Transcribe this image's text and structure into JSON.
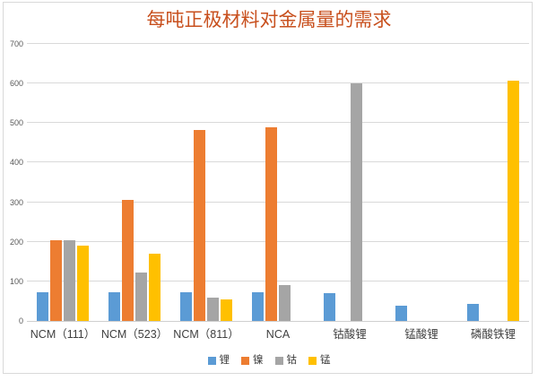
{
  "title": "每吨正极材料对金属量的需求",
  "chart_data": {
    "type": "bar",
    "title": "每吨正极材料对金属量的需求",
    "title_color": "#c8501e",
    "categories": [
      "NCM（111）",
      "NCM（523）",
      "NCM（811）",
      "NCA",
      "钴酸锂",
      "锰酸锂",
      "磷酸铁锂"
    ],
    "series": [
      {
        "name": "锂",
        "color": "#5B9BD5",
        "values": [
          72,
          72,
          72,
          72,
          70,
          38,
          44
        ]
      },
      {
        "name": "镍",
        "color": "#ED7D31",
        "values": [
          204,
          305,
          483,
          489,
          0,
          0,
          0
        ]
      },
      {
        "name": "钴",
        "color": "#A5A5A5",
        "values": [
          205,
          122,
          60,
          90,
          600,
          0,
          0
        ]
      },
      {
        "name": "锰",
        "color": "#FFC000",
        "values": [
          190,
          170,
          55,
          0,
          0,
          0,
          607
        ]
      }
    ],
    "xlabel": "",
    "ylabel": "",
    "ylim": [
      0,
      700
    ],
    "ytick_step": 100,
    "yticks": [
      "0",
      "100",
      "200",
      "300",
      "400",
      "500",
      "600",
      "700"
    ],
    "grid": true,
    "gridline_color": "#d9d9d9",
    "legend_position": "bottom",
    "legend_entries": [
      "锂",
      "镍",
      "钴",
      "锰"
    ]
  }
}
